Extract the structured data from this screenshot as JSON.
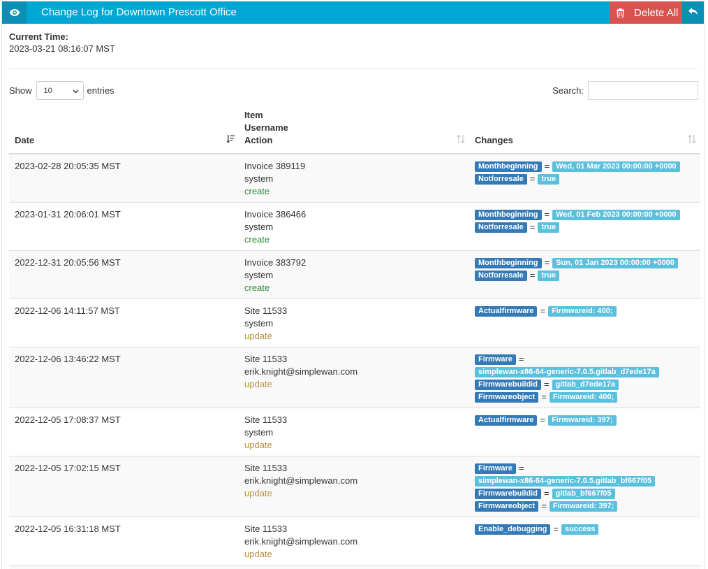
{
  "header": {
    "title": "Change Log for Downtown Prescott Office",
    "delete_label": "Delete All"
  },
  "current_time": {
    "label": "Current Time:",
    "value": "2023-03-21 08:16:07 MST"
  },
  "controls": {
    "show_label": "Show",
    "page_size": "10",
    "entries_label": "entries",
    "search_label": "Search:",
    "search_value": ""
  },
  "columns": {
    "date": "Date",
    "item": "Item",
    "username": "Username",
    "action": "Action",
    "changes": "Changes"
  },
  "rows": [
    {
      "date": "2023-02-28 20:05:35 MST",
      "item": "Invoice 389119",
      "username": "system",
      "action": "create",
      "changes": [
        {
          "key": "Monthbeginning",
          "eq": "=",
          "value": "Wed, 01 Mar 2023 00:00:00 +0000"
        },
        {
          "key": "Notforresale",
          "eq": "=",
          "value": "true"
        }
      ]
    },
    {
      "date": "2023-01-31 20:06:01 MST",
      "item": "Invoice 386466",
      "username": "system",
      "action": "create",
      "changes": [
        {
          "key": "Monthbeginning",
          "eq": "=",
          "value": "Wed, 01 Feb 2023 00:00:00 +0000"
        },
        {
          "key": "Notforresale",
          "eq": "=",
          "value": "true"
        }
      ]
    },
    {
      "date": "2022-12-31 20:05:56 MST",
      "item": "Invoice 383792",
      "username": "system",
      "action": "create",
      "changes": [
        {
          "key": "Monthbeginning",
          "eq": "=",
          "value": "Sun, 01 Jan 2023 00:00:00 +0000"
        },
        {
          "key": "Notforresale",
          "eq": "=",
          "value": "true"
        }
      ]
    },
    {
      "date": "2022-12-06 14:11:57 MST",
      "item": "Site 11533",
      "username": "system",
      "action": "update",
      "changes": [
        {
          "key": "Actualfirmware",
          "eq": "=",
          "value": "Firmwareid: 400;"
        }
      ]
    },
    {
      "date": "2022-12-06 13:46:22 MST",
      "item": "Site 11533",
      "username": "erik.knight@simplewan.com",
      "action": "update",
      "changes": [
        {
          "key": "Firmware",
          "eq": "=",
          "value": "simplewan-x86-64-generic-7.0.5.gitlab_d7ede17a",
          "wrap": true
        },
        {
          "key": "Firmwarebuildid",
          "eq": "=",
          "value": "gitlab_d7ede17a"
        },
        {
          "key": "Firmwareobject",
          "eq": "=",
          "value": "Firmwareid: 400;"
        }
      ]
    },
    {
      "date": "2022-12-05 17:08:37 MST",
      "item": "Site 11533",
      "username": "system",
      "action": "update",
      "changes": [
        {
          "key": "Actualfirmware",
          "eq": "=",
          "value": "Firmwareid: 397;"
        }
      ]
    },
    {
      "date": "2022-12-05 17:02:15 MST",
      "item": "Site 11533",
      "username": "erik.knight@simplewan.com",
      "action": "update",
      "changes": [
        {
          "key": "Firmware",
          "eq": "=",
          "value": "simplewan-x86-64-generic-7.0.5.gitlab_bf667f05",
          "wrap": true
        },
        {
          "key": "Firmwarebuildid",
          "eq": "=",
          "value": "gitlab_bf667f05"
        },
        {
          "key": "Firmwareobject",
          "eq": "=",
          "value": "Firmwareid: 397;"
        }
      ]
    },
    {
      "date": "2022-12-05 16:31:18 MST",
      "item": "Site 11533",
      "username": "erik.knight@simplewan.com",
      "action": "update",
      "changes": [
        {
          "key": "Enable_debugging",
          "eq": "=",
          "value": "success"
        }
      ]
    },
    {
      "date": "",
      "item": "",
      "username": "",
      "action": "",
      "changes": []
    }
  ]
}
